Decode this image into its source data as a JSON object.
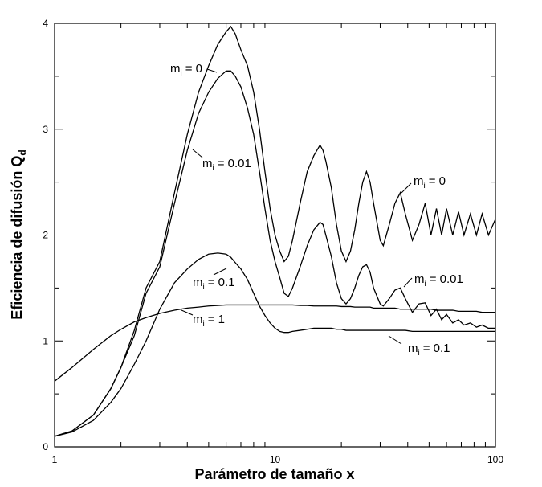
{
  "chart_data": {
    "type": "line",
    "xlabel": "Parámetro de tamaño x",
    "ylabel": "Eficiencia de difusión Q",
    "ylabel_subscript": "d",
    "xscale": "log",
    "xlim": [
      1,
      100
    ],
    "ylim": [
      0,
      4
    ],
    "xticks": [
      1,
      10,
      100
    ],
    "yticks": [
      0,
      1,
      2,
      3,
      4
    ],
    "xminorticks": [
      2,
      3,
      4,
      5,
      6,
      7,
      8,
      9,
      20,
      30,
      40,
      50,
      60,
      70,
      80,
      90
    ],
    "yminorticks": [
      0.5,
      1.5,
      2.5,
      3.5
    ],
    "x": [
      1,
      1.2,
      1.5,
      1.8,
      2,
      2.3,
      2.6,
      3,
      3.5,
      4,
      4.5,
      5,
      5.5,
      6,
      6.3,
      6.6,
      7,
      7.5,
      8,
      8.5,
      9,
      9.5,
      10,
      10.5,
      11,
      11.5,
      12,
      13,
      14,
      15,
      16,
      16.5,
      17,
      18,
      19,
      20,
      21,
      22,
      23,
      24,
      25,
      26,
      27,
      28,
      30,
      31,
      33,
      35,
      37,
      39,
      42,
      45,
      48,
      51,
      54,
      57,
      60,
      64,
      68,
      72,
      77,
      82,
      87,
      93,
      100
    ],
    "series": [
      {
        "color": "#000000",
        "values": [
          0.1,
          0.15,
          0.3,
          0.55,
          0.75,
          1.1,
          1.5,
          1.75,
          2.4,
          2.95,
          3.35,
          3.6,
          3.8,
          3.92,
          3.97,
          3.9,
          3.75,
          3.6,
          3.35,
          3.0,
          2.6,
          2.25,
          2.0,
          1.85,
          1.75,
          1.8,
          1.95,
          2.3,
          2.6,
          2.75,
          2.85,
          2.8,
          2.7,
          2.45,
          2.1,
          1.85,
          1.75,
          1.85,
          2.05,
          2.3,
          2.5,
          2.6,
          2.5,
          2.3,
          1.95,
          1.9,
          2.1,
          2.3,
          2.4,
          2.2,
          1.95,
          2.1,
          2.3,
          2.0,
          2.25,
          2.0,
          2.25,
          2.0,
          2.22,
          2.0,
          2.2,
          2.0,
          2.2,
          2.0,
          2.15
        ]
      },
      {
        "color": "#000000",
        "values": [
          0.1,
          0.15,
          0.3,
          0.55,
          0.75,
          1.05,
          1.45,
          1.7,
          2.3,
          2.8,
          3.15,
          3.35,
          3.48,
          3.55,
          3.55,
          3.5,
          3.4,
          3.2,
          2.95,
          2.6,
          2.25,
          1.95,
          1.75,
          1.6,
          1.45,
          1.42,
          1.5,
          1.7,
          1.9,
          2.05,
          2.12,
          2.1,
          2.0,
          1.8,
          1.55,
          1.4,
          1.35,
          1.4,
          1.5,
          1.62,
          1.7,
          1.72,
          1.65,
          1.5,
          1.35,
          1.33,
          1.4,
          1.48,
          1.5,
          1.4,
          1.27,
          1.35,
          1.36,
          1.24,
          1.3,
          1.2,
          1.25,
          1.17,
          1.2,
          1.15,
          1.17,
          1.13,
          1.15,
          1.12,
          1.12
        ]
      },
      {
        "color": "#000000",
        "values": [
          0.1,
          0.14,
          0.25,
          0.42,
          0.55,
          0.78,
          1.0,
          1.3,
          1.55,
          1.68,
          1.77,
          1.82,
          1.83,
          1.82,
          1.79,
          1.74,
          1.68,
          1.58,
          1.45,
          1.33,
          1.24,
          1.17,
          1.12,
          1.09,
          1.08,
          1.08,
          1.09,
          1.1,
          1.11,
          1.12,
          1.12,
          1.12,
          1.12,
          1.12,
          1.11,
          1.11,
          1.1,
          1.1,
          1.1,
          1.1,
          1.1,
          1.1,
          1.1,
          1.1,
          1.1,
          1.1,
          1.1,
          1.1,
          1.1,
          1.1,
          1.09,
          1.09,
          1.09,
          1.09,
          1.09,
          1.09,
          1.09,
          1.09,
          1.09,
          1.09,
          1.09,
          1.09,
          1.09,
          1.09,
          1.09
        ]
      },
      {
        "color": "#000000",
        "values": [
          0.62,
          0.75,
          0.92,
          1.05,
          1.11,
          1.18,
          1.22,
          1.26,
          1.29,
          1.31,
          1.32,
          1.33,
          1.335,
          1.34,
          1.34,
          1.34,
          1.34,
          1.34,
          1.34,
          1.34,
          1.34,
          1.34,
          1.34,
          1.34,
          1.34,
          1.34,
          1.34,
          1.335,
          1.335,
          1.33,
          1.33,
          1.33,
          1.33,
          1.33,
          1.33,
          1.325,
          1.325,
          1.325,
          1.32,
          1.32,
          1.32,
          1.32,
          1.32,
          1.31,
          1.31,
          1.31,
          1.31,
          1.31,
          1.3,
          1.3,
          1.3,
          1.3,
          1.3,
          1.3,
          1.29,
          1.29,
          1.29,
          1.29,
          1.28,
          1.28,
          1.28,
          1.28,
          1.27,
          1.27,
          1.27
        ]
      }
    ],
    "annotations": [
      {
        "symbol": "m",
        "subscript": "i",
        "text": "= 0"
      },
      {
        "symbol": "m",
        "subscript": "i",
        "text": "= 0.01"
      },
      {
        "symbol": "m",
        "subscript": "i",
        "text": "= 0"
      },
      {
        "symbol": "m",
        "subscript": "i",
        "text": "= 0.01"
      },
      {
        "symbol": "m",
        "subscript": "i",
        "text": "= 0.1"
      },
      {
        "symbol": "m",
        "subscript": "i",
        "text": "= 1"
      },
      {
        "symbol": "m",
        "subscript": "i",
        "text": "= 0.1"
      }
    ]
  }
}
